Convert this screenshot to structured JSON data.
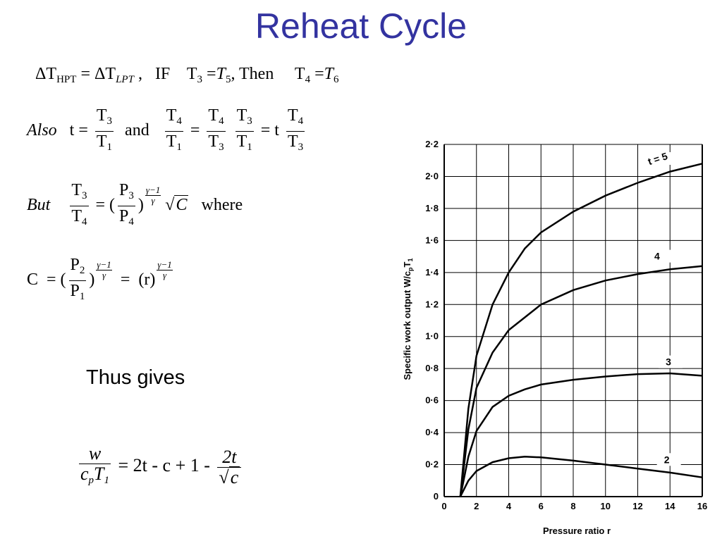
{
  "slide": {
    "title": "Reheat Cycle",
    "thus_text": "Thus gives"
  },
  "equations": {
    "line1": {
      "dT": "ΔT",
      "hpt": "HPT",
      "eq": " = ",
      "dT2": "ΔT",
      "lpt": "LPT",
      "comma": " ,",
      "if": "IF",
      "t3": "T",
      "s3": "3",
      "t5": "T",
      "s5": "5",
      "then": ", Then",
      "t4": "T",
      "s4": "4",
      "t6": "T",
      "s6": "6"
    },
    "line2": {
      "also": "Also",
      "t": "t =",
      "and": "and",
      "equals": "=",
      "eqt": "= t"
    },
    "line3": {
      "but": "But",
      "where": "where",
      "C": "C"
    },
    "line4": {
      "C": "C",
      "r": "(r)"
    },
    "final": {
      "w": "w",
      "cp": "c",
      "p": "p",
      "T1": "T",
      "one": "1",
      "rhs": "= 2t - c + 1 -",
      "twot": "2t",
      "c": "c"
    }
  },
  "chart_data": {
    "type": "line",
    "xlabel": "Pressure ratio r",
    "ylabel": "Specific work output W/c",
    "ylabel_sub_p": "p",
    "ylabel_T": "T",
    "ylabel_sub_1": "1",
    "xlim": [
      0,
      16
    ],
    "ylim": [
      0,
      2.2
    ],
    "x_ticks": [
      "0",
      "2",
      "4",
      "6",
      "8",
      "10",
      "12",
      "14",
      "16"
    ],
    "y_ticks": [
      "0",
      "0·2",
      "0·4",
      "0·6",
      "0·8",
      "1·0",
      "1·2",
      "1·4",
      "1·6",
      "1·8",
      "2·0",
      "2·2"
    ],
    "grid": true,
    "series": [
      {
        "name": "t = 5",
        "x": [
          1,
          1.5,
          2,
          3,
          4,
          5,
          6,
          8,
          10,
          12,
          14,
          16
        ],
        "y": [
          0,
          0.55,
          0.88,
          1.2,
          1.4,
          1.55,
          1.65,
          1.78,
          1.88,
          1.96,
          2.03,
          2.08
        ]
      },
      {
        "name": "4",
        "x": [
          1,
          1.5,
          2,
          3,
          4,
          5,
          6,
          8,
          10,
          12,
          14,
          16
        ],
        "y": [
          0,
          0.42,
          0.68,
          0.9,
          1.04,
          1.12,
          1.2,
          1.29,
          1.35,
          1.39,
          1.42,
          1.44
        ]
      },
      {
        "name": "3",
        "x": [
          1,
          1.5,
          2,
          3,
          4,
          5,
          6,
          8,
          10,
          12,
          14,
          16
        ],
        "y": [
          0,
          0.25,
          0.41,
          0.56,
          0.63,
          0.67,
          0.7,
          0.73,
          0.75,
          0.765,
          0.77,
          0.755
        ]
      },
      {
        "name": "2",
        "x": [
          1,
          1.5,
          2,
          3,
          4,
          5,
          6,
          8,
          10,
          12,
          14,
          16
        ],
        "y": [
          0,
          0.1,
          0.16,
          0.215,
          0.24,
          0.25,
          0.245,
          0.225,
          0.2,
          0.175,
          0.15,
          0.12
        ]
      }
    ]
  }
}
